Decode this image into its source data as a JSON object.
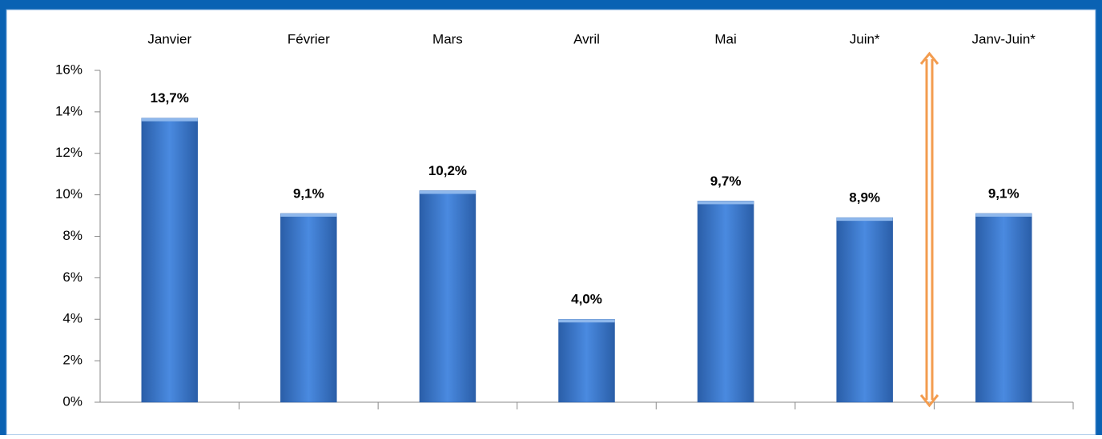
{
  "chart_data": {
    "type": "bar",
    "categories": [
      "Janvier",
      "Février",
      "Mars",
      "Avril",
      "Mai",
      "Juin*",
      "Janv-Juin*"
    ],
    "values": [
      13.7,
      9.1,
      10.2,
      4.0,
      9.7,
      8.9,
      9.1
    ],
    "value_labels": [
      "13,7%",
      "9,1%",
      "10,2%",
      "4,0%",
      "9,7%",
      "8,9%",
      "9,1%"
    ],
    "color": "#3a73c4",
    "ylim": [
      0,
      16
    ],
    "yticks": [
      {
        "value": 0,
        "label": "0%"
      },
      {
        "value": 2,
        "label": "2%"
      },
      {
        "value": 4,
        "label": "4%"
      },
      {
        "value": 6,
        "label": "6%"
      },
      {
        "value": 8,
        "label": "8%"
      },
      {
        "value": 10,
        "label": "10%"
      },
      {
        "value": 12,
        "label": "12%"
      },
      {
        "value": 14,
        "label": "14%"
      },
      {
        "value": 16,
        "label": "16%"
      }
    ],
    "grid": false
  }
}
